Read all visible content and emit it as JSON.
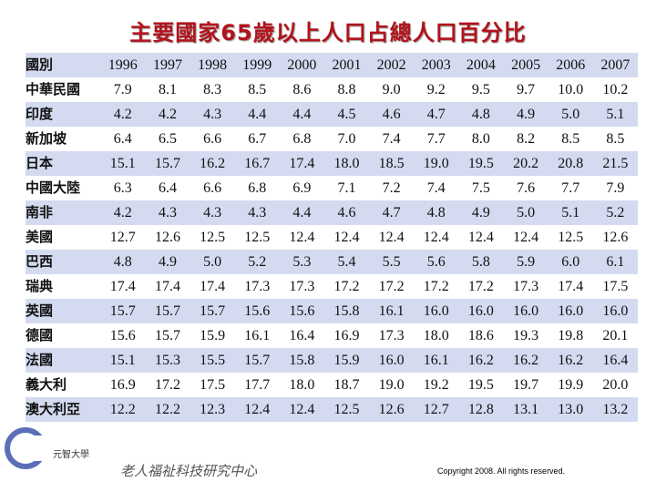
{
  "header": {
    "title": "主要國家65歲以上人口占總人口百分比"
  },
  "table": {
    "columns": [
      "國別",
      "1996",
      "1997",
      "1998",
      "1999",
      "2000",
      "2001",
      "2002",
      "2003",
      "2004",
      "2005",
      "2006",
      "2007"
    ],
    "rows": [
      [
        "中華民國",
        "7.9",
        "8.1",
        "8.3",
        "8.5",
        "8.6",
        "8.8",
        "9.0",
        "9.2",
        "9.5",
        "9.7",
        "10.0",
        "10.2"
      ],
      [
        "印度",
        "4.2",
        "4.2",
        "4.3",
        "4.4",
        "4.4",
        "4.5",
        "4.6",
        "4.7",
        "4.8",
        "4.9",
        "5.0",
        "5.1"
      ],
      [
        "新加坡",
        "6.4",
        "6.5",
        "6.6",
        "6.7",
        "6.8",
        "7.0",
        "7.4",
        "7.7",
        "8.0",
        "8.2",
        "8.5",
        "8.5"
      ],
      [
        "日本",
        "15.1",
        "15.7",
        "16.2",
        "16.7",
        "17.4",
        "18.0",
        "18.5",
        "19.0",
        "19.5",
        "20.2",
        "20.8",
        "21.5"
      ],
      [
        "中國大陸",
        "6.3",
        "6.4",
        "6.6",
        "6.8",
        "6.9",
        "7.1",
        "7.2",
        "7.4",
        "7.5",
        "7.6",
        "7.7",
        "7.9"
      ],
      [
        "南非",
        "4.2",
        "4.3",
        "4.3",
        "4.3",
        "4.4",
        "4.6",
        "4.7",
        "4.8",
        "4.9",
        "5.0",
        "5.1",
        "5.2"
      ],
      [
        "美國",
        "12.7",
        "12.6",
        "12.5",
        "12.5",
        "12.4",
        "12.4",
        "12.4",
        "12.4",
        "12.4",
        "12.4",
        "12.5",
        "12.6"
      ],
      [
        "巴西",
        "4.8",
        "4.9",
        "5.0",
        "5.2",
        "5.3",
        "5.4",
        "5.5",
        "5.6",
        "5.8",
        "5.9",
        "6.0",
        "6.1"
      ],
      [
        "瑞典",
        "17.4",
        "17.4",
        "17.4",
        "17.3",
        "17.3",
        "17.2",
        "17.2",
        "17.2",
        "17.2",
        "17.3",
        "17.4",
        "17.5"
      ],
      [
        "英國",
        "15.7",
        "15.7",
        "15.7",
        "15.6",
        "15.6",
        "15.8",
        "16.1",
        "16.0",
        "16.0",
        "16.0",
        "16.0",
        "16.0"
      ],
      [
        "德國",
        "15.6",
        "15.7",
        "15.9",
        "16.1",
        "16.4",
        "16.9",
        "17.3",
        "18.0",
        "18.6",
        "19.3",
        "19.8",
        "20.1"
      ],
      [
        "法國",
        "15.1",
        "15.3",
        "15.5",
        "15.7",
        "15.8",
        "15.9",
        "16.0",
        "16.1",
        "16.2",
        "16.2",
        "16.2",
        "16.4"
      ],
      [
        "義大利",
        "16.9",
        "17.2",
        "17.5",
        "17.7",
        "18.0",
        "18.7",
        "19.0",
        "19.2",
        "19.5",
        "19.7",
        "19.9",
        "20.0"
      ],
      [
        "澳大利亞",
        "12.2",
        "12.2",
        "12.3",
        "12.4",
        "12.4",
        "12.5",
        "12.6",
        "12.7",
        "12.8",
        "13.1",
        "13.0",
        "13.2"
      ]
    ]
  },
  "footer": {
    "logo_text": "元智大學",
    "center_name": "老人福祉科技研究中心",
    "copyright": "Copyright 2008. All rights reserved."
  }
}
